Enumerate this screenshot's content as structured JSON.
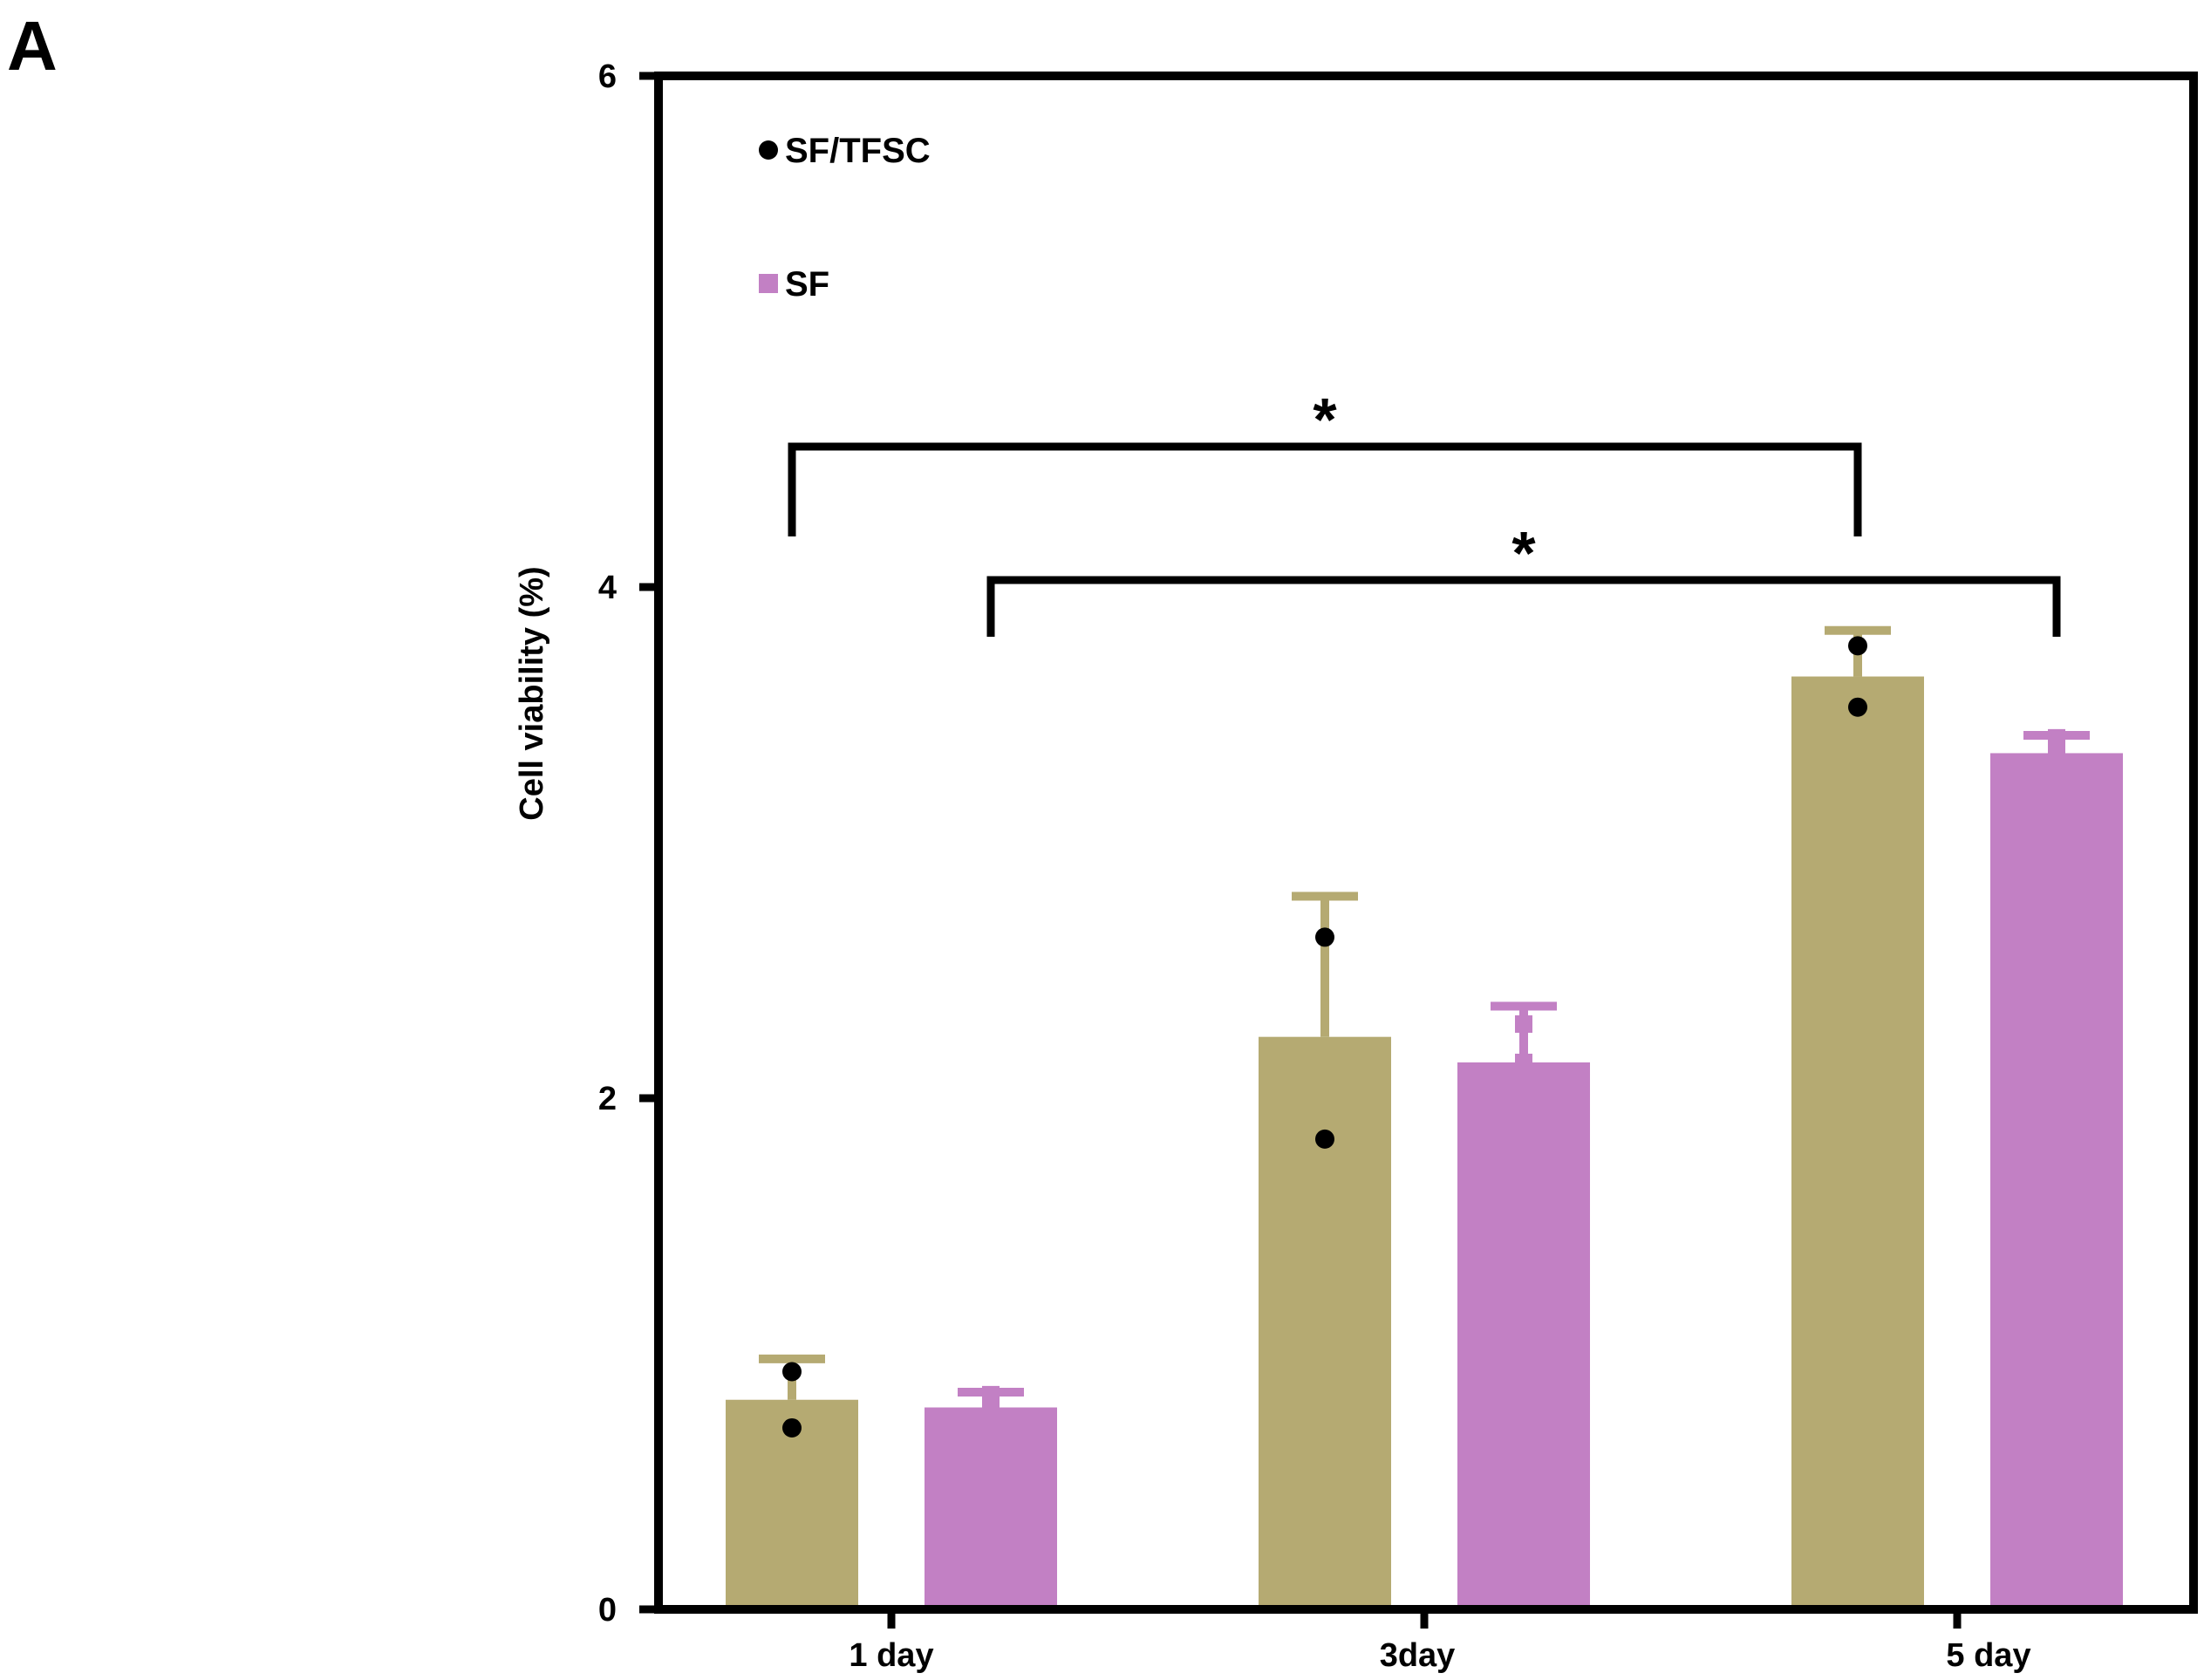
{
  "panel_label": "A",
  "chart_data": {
    "type": "bar",
    "title": "",
    "xlabel": "",
    "ylabel": "Cell viability (%)",
    "ylim": [
      0,
      6
    ],
    "yticks": [
      "0",
      "2",
      "4",
      "6"
    ],
    "categories": [
      "1 day",
      "3day",
      "5 day"
    ],
    "series": [
      {
        "name": "SF/TFSC",
        "color": "#b5aa72",
        "marker": "circle",
        "values": [
          0.82,
          2.24,
          3.65
        ],
        "error_upper": [
          0.98,
          2.79,
          3.83
        ],
        "points": [
          [
            0.93,
            0.71
          ],
          [
            2.63,
            1.84
          ],
          [
            3.77,
            3.53
          ]
        ]
      },
      {
        "name": "SF",
        "color": "#c280c4",
        "marker": "square",
        "values": [
          0.79,
          2.14,
          3.35
        ],
        "error_upper": [
          0.85,
          2.36,
          3.42
        ],
        "points": [
          [
            0.84,
            0.79
          ],
          [
            2.29,
            2.14
          ],
          [
            3.41,
            3.35
          ]
        ]
      }
    ],
    "significance": [
      {
        "from_category": "1 day",
        "from_series": "SF/TFSC",
        "to_category": "5 day",
        "to_series": "SF/TFSC",
        "label": "*"
      },
      {
        "from_category": "1 day",
        "from_series": "SF",
        "to_category": "5 day",
        "to_series": "SF",
        "label": "*"
      }
    ],
    "legend": {
      "placement": "top-left"
    }
  }
}
